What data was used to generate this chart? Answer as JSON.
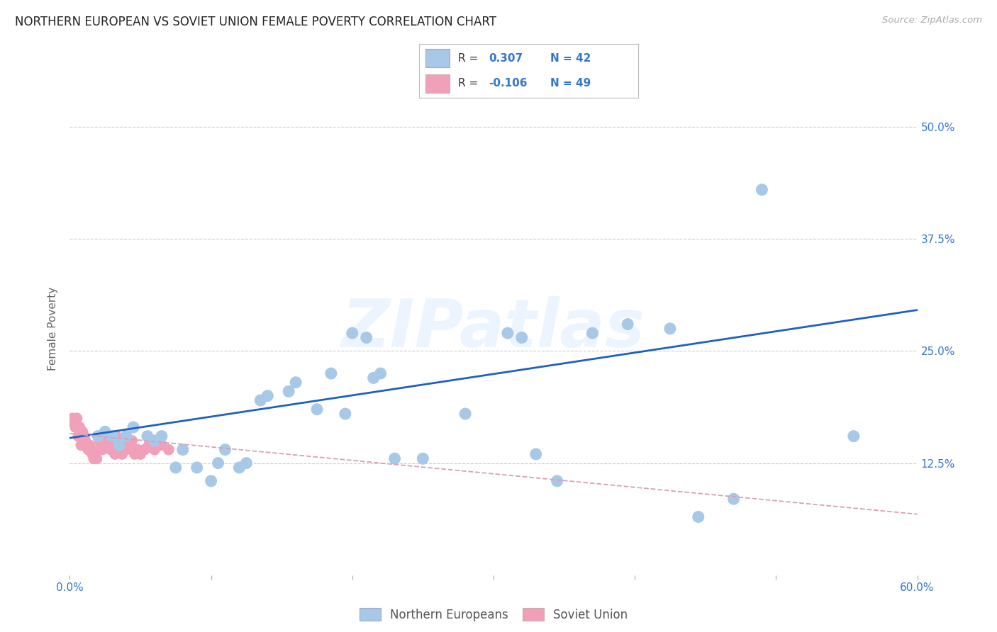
{
  "title": "NORTHERN EUROPEAN VS SOVIET UNION FEMALE POVERTY CORRELATION CHART",
  "source": "Source: ZipAtlas.com",
  "ylabel": "Female Poverty",
  "xlim": [
    0.0,
    0.6
  ],
  "ylim": [
    0.0,
    0.55
  ],
  "yticks": [
    0.0,
    0.125,
    0.25,
    0.375,
    0.5
  ],
  "ytick_labels": [
    "",
    "12.5%",
    "25.0%",
    "37.5%",
    "50.0%"
  ],
  "xtick_positions": [
    0.0,
    0.1,
    0.2,
    0.3,
    0.4,
    0.5,
    0.6
  ],
  "xtick_labels_show": [
    "0.0%",
    "",
    "",
    "",
    "",
    "",
    "60.0%"
  ],
  "legend_R1": "0.307",
  "legend_N1": "42",
  "legend_R2": "-0.106",
  "legend_N2": "49",
  "blue_color": "#a8c8e8",
  "pink_color": "#f0a0b8",
  "line_color": "#2060c0",
  "pink_line_color": "#d8a0b8",
  "background": "#ffffff",
  "grid_color": "#cccccc",
  "watermark": "ZIPatlas",
  "blue_x": [
    0.02,
    0.025,
    0.03,
    0.035,
    0.04,
    0.045,
    0.055,
    0.06,
    0.065,
    0.075,
    0.08,
    0.09,
    0.1,
    0.105,
    0.11,
    0.12,
    0.125,
    0.135,
    0.14,
    0.155,
    0.16,
    0.175,
    0.185,
    0.195,
    0.2,
    0.21,
    0.215,
    0.22,
    0.23,
    0.25,
    0.28,
    0.31,
    0.32,
    0.33,
    0.345,
    0.37,
    0.395,
    0.425,
    0.445,
    0.47,
    0.49,
    0.555
  ],
  "blue_y": [
    0.155,
    0.16,
    0.155,
    0.145,
    0.155,
    0.165,
    0.155,
    0.15,
    0.155,
    0.12,
    0.14,
    0.12,
    0.105,
    0.125,
    0.14,
    0.12,
    0.125,
    0.195,
    0.2,
    0.205,
    0.215,
    0.185,
    0.225,
    0.18,
    0.27,
    0.265,
    0.22,
    0.225,
    0.13,
    0.13,
    0.18,
    0.27,
    0.265,
    0.135,
    0.105,
    0.27,
    0.28,
    0.275,
    0.065,
    0.085,
    0.43,
    0.155
  ],
  "pink_x": [
    0.002,
    0.003,
    0.004,
    0.005,
    0.006,
    0.007,
    0.008,
    0.009,
    0.01,
    0.011,
    0.012,
    0.013,
    0.014,
    0.015,
    0.016,
    0.017,
    0.018,
    0.019,
    0.02,
    0.021,
    0.022,
    0.023,
    0.024,
    0.025,
    0.026,
    0.027,
    0.028,
    0.029,
    0.03,
    0.031,
    0.032,
    0.033,
    0.034,
    0.035,
    0.036,
    0.037,
    0.038,
    0.039,
    0.04,
    0.042,
    0.044,
    0.046,
    0.048,
    0.05,
    0.053,
    0.056,
    0.06,
    0.065,
    0.07
  ],
  "pink_y": [
    0.175,
    0.17,
    0.165,
    0.175,
    0.155,
    0.165,
    0.145,
    0.16,
    0.155,
    0.15,
    0.145,
    0.14,
    0.145,
    0.14,
    0.135,
    0.13,
    0.135,
    0.13,
    0.155,
    0.15,
    0.145,
    0.14,
    0.155,
    0.15,
    0.145,
    0.145,
    0.15,
    0.14,
    0.145,
    0.14,
    0.135,
    0.155,
    0.14,
    0.145,
    0.14,
    0.135,
    0.145,
    0.14,
    0.14,
    0.145,
    0.15,
    0.135,
    0.14,
    0.135,
    0.14,
    0.145,
    0.14,
    0.145,
    0.14
  ]
}
